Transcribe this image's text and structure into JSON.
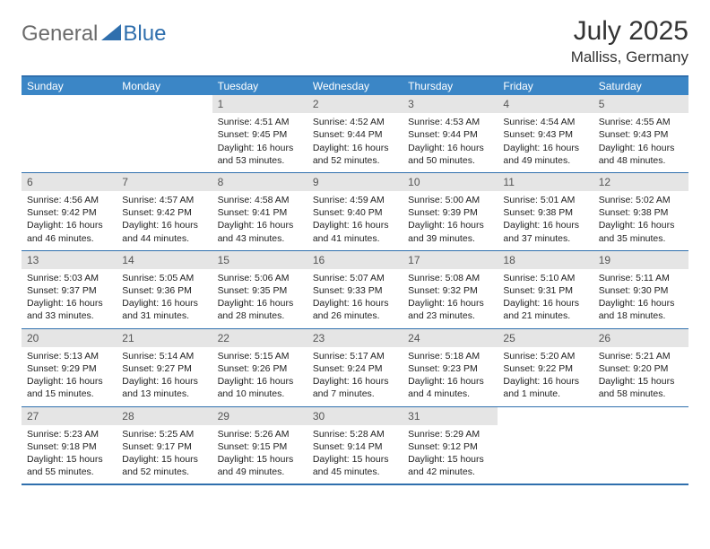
{
  "brand": {
    "part1": "General",
    "part2": "Blue"
  },
  "title": "July 2025",
  "location": "Malliss, Germany",
  "colors": {
    "header_bg": "#3b86c6",
    "border": "#2f6fad",
    "daynum_bg": "#e5e5e5",
    "text": "#222222"
  },
  "day_headers": [
    "Sunday",
    "Monday",
    "Tuesday",
    "Wednesday",
    "Thursday",
    "Friday",
    "Saturday"
  ],
  "weeks": [
    [
      null,
      null,
      {
        "n": "1",
        "sr": "Sunrise: 4:51 AM",
        "ss": "Sunset: 9:45 PM",
        "d1": "Daylight: 16 hours",
        "d2": "and 53 minutes."
      },
      {
        "n": "2",
        "sr": "Sunrise: 4:52 AM",
        "ss": "Sunset: 9:44 PM",
        "d1": "Daylight: 16 hours",
        "d2": "and 52 minutes."
      },
      {
        "n": "3",
        "sr": "Sunrise: 4:53 AM",
        "ss": "Sunset: 9:44 PM",
        "d1": "Daylight: 16 hours",
        "d2": "and 50 minutes."
      },
      {
        "n": "4",
        "sr": "Sunrise: 4:54 AM",
        "ss": "Sunset: 9:43 PM",
        "d1": "Daylight: 16 hours",
        "d2": "and 49 minutes."
      },
      {
        "n": "5",
        "sr": "Sunrise: 4:55 AM",
        "ss": "Sunset: 9:43 PM",
        "d1": "Daylight: 16 hours",
        "d2": "and 48 minutes."
      }
    ],
    [
      {
        "n": "6",
        "sr": "Sunrise: 4:56 AM",
        "ss": "Sunset: 9:42 PM",
        "d1": "Daylight: 16 hours",
        "d2": "and 46 minutes."
      },
      {
        "n": "7",
        "sr": "Sunrise: 4:57 AM",
        "ss": "Sunset: 9:42 PM",
        "d1": "Daylight: 16 hours",
        "d2": "and 44 minutes."
      },
      {
        "n": "8",
        "sr": "Sunrise: 4:58 AM",
        "ss": "Sunset: 9:41 PM",
        "d1": "Daylight: 16 hours",
        "d2": "and 43 minutes."
      },
      {
        "n": "9",
        "sr": "Sunrise: 4:59 AM",
        "ss": "Sunset: 9:40 PM",
        "d1": "Daylight: 16 hours",
        "d2": "and 41 minutes."
      },
      {
        "n": "10",
        "sr": "Sunrise: 5:00 AM",
        "ss": "Sunset: 9:39 PM",
        "d1": "Daylight: 16 hours",
        "d2": "and 39 minutes."
      },
      {
        "n": "11",
        "sr": "Sunrise: 5:01 AM",
        "ss": "Sunset: 9:38 PM",
        "d1": "Daylight: 16 hours",
        "d2": "and 37 minutes."
      },
      {
        "n": "12",
        "sr": "Sunrise: 5:02 AM",
        "ss": "Sunset: 9:38 PM",
        "d1": "Daylight: 16 hours",
        "d2": "and 35 minutes."
      }
    ],
    [
      {
        "n": "13",
        "sr": "Sunrise: 5:03 AM",
        "ss": "Sunset: 9:37 PM",
        "d1": "Daylight: 16 hours",
        "d2": "and 33 minutes."
      },
      {
        "n": "14",
        "sr": "Sunrise: 5:05 AM",
        "ss": "Sunset: 9:36 PM",
        "d1": "Daylight: 16 hours",
        "d2": "and 31 minutes."
      },
      {
        "n": "15",
        "sr": "Sunrise: 5:06 AM",
        "ss": "Sunset: 9:35 PM",
        "d1": "Daylight: 16 hours",
        "d2": "and 28 minutes."
      },
      {
        "n": "16",
        "sr": "Sunrise: 5:07 AM",
        "ss": "Sunset: 9:33 PM",
        "d1": "Daylight: 16 hours",
        "d2": "and 26 minutes."
      },
      {
        "n": "17",
        "sr": "Sunrise: 5:08 AM",
        "ss": "Sunset: 9:32 PM",
        "d1": "Daylight: 16 hours",
        "d2": "and 23 minutes."
      },
      {
        "n": "18",
        "sr": "Sunrise: 5:10 AM",
        "ss": "Sunset: 9:31 PM",
        "d1": "Daylight: 16 hours",
        "d2": "and 21 minutes."
      },
      {
        "n": "19",
        "sr": "Sunrise: 5:11 AM",
        "ss": "Sunset: 9:30 PM",
        "d1": "Daylight: 16 hours",
        "d2": "and 18 minutes."
      }
    ],
    [
      {
        "n": "20",
        "sr": "Sunrise: 5:13 AM",
        "ss": "Sunset: 9:29 PM",
        "d1": "Daylight: 16 hours",
        "d2": "and 15 minutes."
      },
      {
        "n": "21",
        "sr": "Sunrise: 5:14 AM",
        "ss": "Sunset: 9:27 PM",
        "d1": "Daylight: 16 hours",
        "d2": "and 13 minutes."
      },
      {
        "n": "22",
        "sr": "Sunrise: 5:15 AM",
        "ss": "Sunset: 9:26 PM",
        "d1": "Daylight: 16 hours",
        "d2": "and 10 minutes."
      },
      {
        "n": "23",
        "sr": "Sunrise: 5:17 AM",
        "ss": "Sunset: 9:24 PM",
        "d1": "Daylight: 16 hours",
        "d2": "and 7 minutes."
      },
      {
        "n": "24",
        "sr": "Sunrise: 5:18 AM",
        "ss": "Sunset: 9:23 PM",
        "d1": "Daylight: 16 hours",
        "d2": "and 4 minutes."
      },
      {
        "n": "25",
        "sr": "Sunrise: 5:20 AM",
        "ss": "Sunset: 9:22 PM",
        "d1": "Daylight: 16 hours",
        "d2": "and 1 minute."
      },
      {
        "n": "26",
        "sr": "Sunrise: 5:21 AM",
        "ss": "Sunset: 9:20 PM",
        "d1": "Daylight: 15 hours",
        "d2": "and 58 minutes."
      }
    ],
    [
      {
        "n": "27",
        "sr": "Sunrise: 5:23 AM",
        "ss": "Sunset: 9:18 PM",
        "d1": "Daylight: 15 hours",
        "d2": "and 55 minutes."
      },
      {
        "n": "28",
        "sr": "Sunrise: 5:25 AM",
        "ss": "Sunset: 9:17 PM",
        "d1": "Daylight: 15 hours",
        "d2": "and 52 minutes."
      },
      {
        "n": "29",
        "sr": "Sunrise: 5:26 AM",
        "ss": "Sunset: 9:15 PM",
        "d1": "Daylight: 15 hours",
        "d2": "and 49 minutes."
      },
      {
        "n": "30",
        "sr": "Sunrise: 5:28 AM",
        "ss": "Sunset: 9:14 PM",
        "d1": "Daylight: 15 hours",
        "d2": "and 45 minutes."
      },
      {
        "n": "31",
        "sr": "Sunrise: 5:29 AM",
        "ss": "Sunset: 9:12 PM",
        "d1": "Daylight: 15 hours",
        "d2": "and 42 minutes."
      },
      null,
      null
    ]
  ]
}
